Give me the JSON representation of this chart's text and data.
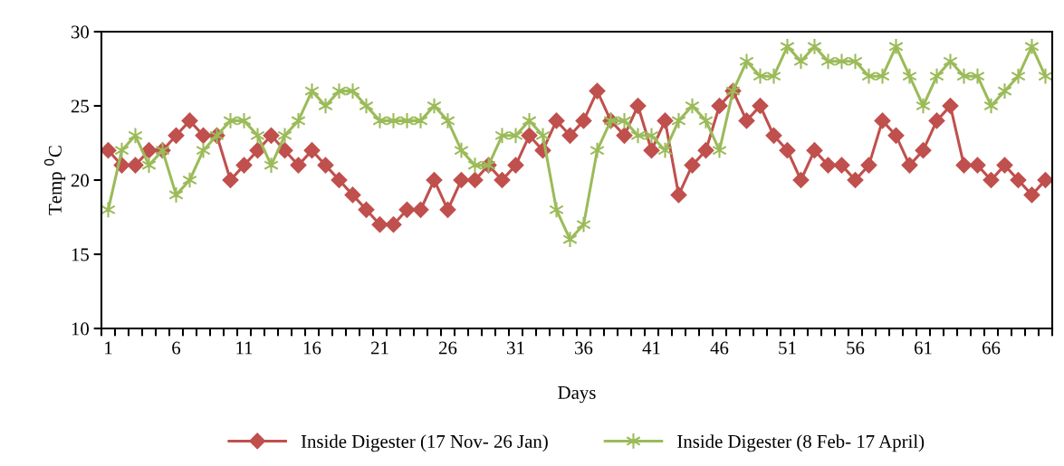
{
  "chart_data": {
    "type": "line",
    "xlabel": "Days",
    "ylabel": "Temp $^{0}$C",
    "categories": [
      "1",
      null,
      null,
      null,
      null,
      "6",
      null,
      null,
      null,
      null,
      "11",
      null,
      null,
      null,
      null,
      "16",
      null,
      null,
      null,
      null,
      "21",
      null,
      null,
      null,
      null,
      "26",
      null,
      null,
      null,
      null,
      "31",
      null,
      null,
      null,
      null,
      "36",
      null,
      null,
      null,
      null,
      "41",
      null,
      null,
      null,
      null,
      "46",
      null,
      null,
      null,
      null,
      "51",
      null,
      null,
      null,
      null,
      "56",
      null,
      null,
      null,
      null,
      "61",
      null,
      null,
      null,
      null,
      "66",
      null,
      null,
      null,
      null
    ],
    "series": [
      {
        "name": "Inside Digester (17 Nov- 26 Jan)",
        "color": "#c0504d",
        "marker": "diamond",
        "values": [
          22,
          21,
          21,
          22,
          22,
          23,
          24,
          23,
          23,
          20,
          21,
          22,
          23,
          22,
          21,
          22,
          21,
          20,
          19,
          18,
          17,
          17,
          18,
          18,
          20,
          18,
          20,
          20,
          21,
          20,
          21,
          23,
          22,
          24,
          23,
          24,
          26,
          24,
          23,
          25,
          22,
          24,
          19,
          21,
          22,
          25,
          26,
          24,
          25,
          23,
          22,
          20,
          22,
          21,
          21,
          20,
          21,
          24,
          23,
          21,
          22,
          24,
          25,
          21,
          21,
          20,
          21,
          20,
          19,
          20
        ]
      },
      {
        "name": "Inside Digester (8 Feb- 17 April)",
        "color": "#9bbb59",
        "marker": "cross",
        "values": [
          18,
          22,
          23,
          21,
          22,
          19,
          20,
          22,
          23,
          24,
          24,
          23,
          21,
          23,
          24,
          26,
          25,
          26,
          26,
          25,
          24,
          24,
          24,
          24,
          25,
          24,
          22,
          21,
          21,
          23,
          23,
          24,
          23,
          18,
          16,
          17,
          22,
          24,
          24,
          23,
          23,
          22,
          24,
          25,
          24,
          22,
          26,
          28,
          27,
          27,
          29,
          28,
          29,
          28,
          28,
          28,
          27,
          27,
          29,
          27,
          25,
          27,
          28,
          27,
          27,
          25,
          26,
          27,
          29,
          27
        ]
      }
    ],
    "ylim": [
      10,
      30
    ],
    "yticks": [
      10,
      15,
      20,
      25,
      30
    ],
    "grid": false,
    "legend": "bottom",
    "line_style": "solid"
  }
}
